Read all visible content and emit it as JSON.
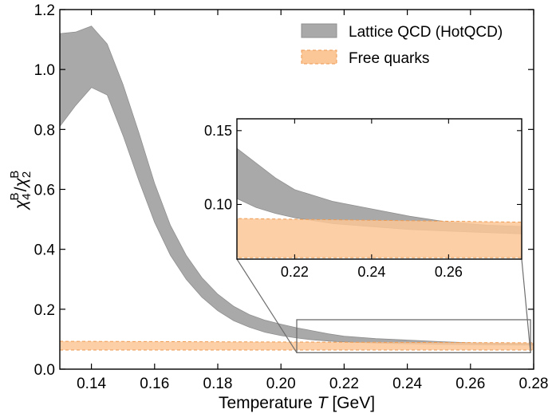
{
  "chart_data": {
    "type": "area",
    "xlabel": {
      "prefix": "Temperature ",
      "var": "T",
      "suffix": " [GeV]"
    },
    "ylabel": {
      "chi": "χ",
      "num_sub": "4",
      "sup": "B",
      "slash": "/",
      "den_sub": "2"
    },
    "xlim": [
      0.13,
      0.28
    ],
    "ylim": [
      0.0,
      1.2
    ],
    "xticks": [
      0.14,
      0.16,
      0.18,
      0.2,
      0.22,
      0.24,
      0.26,
      0.28
    ],
    "xtick_labels": [
      "0.14",
      "0.16",
      "0.18",
      "0.20",
      "0.22",
      "0.24",
      "0.26",
      "0.28"
    ],
    "yticks": [
      0.0,
      0.2,
      0.4,
      0.6,
      0.8,
      1.0,
      1.2
    ],
    "ytick_labels": [
      "0.0",
      "0.2",
      "0.4",
      "0.6",
      "0.8",
      "1.0",
      "1.2"
    ],
    "legend_position": "top-right",
    "series": [
      {
        "name": "Lattice QCD (HotQCD)",
        "kind": "band",
        "color": "#a9a9a9",
        "edge": "#8f8f8f",
        "x": [
          0.13,
          0.135,
          0.14,
          0.145,
          0.15,
          0.155,
          0.16,
          0.165,
          0.17,
          0.175,
          0.18,
          0.185,
          0.19,
          0.195,
          0.2,
          0.205,
          0.21,
          0.215,
          0.22,
          0.23,
          0.24,
          0.25,
          0.26,
          0.27,
          0.28
        ],
        "upper": [
          1.12,
          1.125,
          1.145,
          1.085,
          0.95,
          0.79,
          0.62,
          0.48,
          0.38,
          0.305,
          0.25,
          0.21,
          0.182,
          0.163,
          0.15,
          0.138,
          0.128,
          0.118,
          0.11,
          0.102,
          0.097,
          0.092,
          0.088,
          0.086,
          0.085
        ],
        "lower": [
          0.81,
          0.88,
          0.94,
          0.915,
          0.78,
          0.63,
          0.49,
          0.38,
          0.3,
          0.24,
          0.195,
          0.162,
          0.14,
          0.123,
          0.112,
          0.104,
          0.098,
          0.094,
          0.091,
          0.087,
          0.085,
          0.083,
          0.082,
          0.081,
          0.08
        ]
      },
      {
        "name": "Free quarks",
        "kind": "band",
        "color": "#fbc797",
        "edge": "#ee9a50",
        "x": [
          0.13,
          0.28
        ],
        "upper": [
          0.093,
          0.088
        ],
        "lower": [
          0.064,
          0.064
        ]
      }
    ],
    "inset": {
      "xlim": [
        0.205,
        0.279
      ],
      "ylim": [
        0.063,
        0.158
      ],
      "xticks": [
        0.22,
        0.24,
        0.26
      ],
      "xtick_labels": [
        "0.22",
        "0.24",
        "0.26"
      ],
      "yticks": [
        0.1,
        0.15
      ],
      "ytick_labels": [
        "0.10",
        "0.15"
      ],
      "zoom_region": {
        "x": [
          0.205,
          0.279
        ],
        "y": [
          0.055,
          0.165
        ]
      }
    }
  }
}
